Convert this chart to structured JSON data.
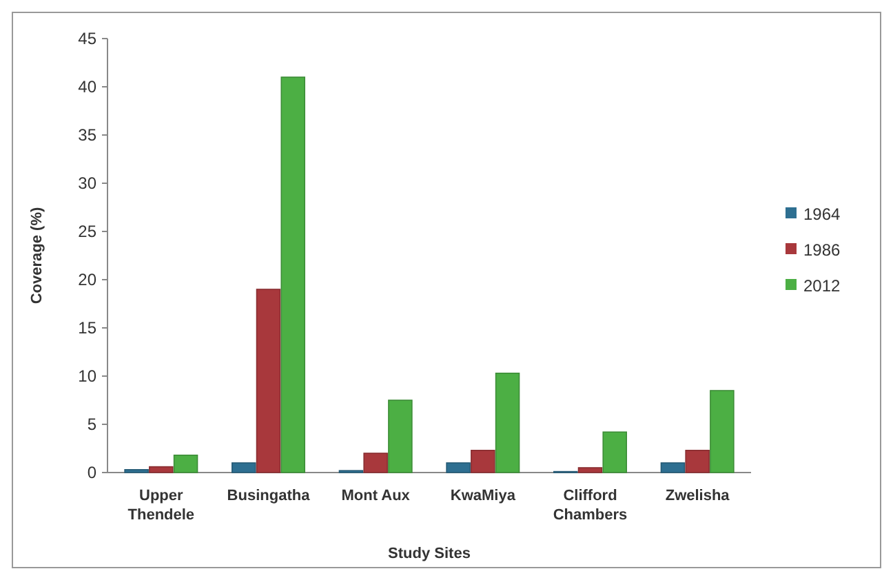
{
  "chart_data": {
    "type": "bar",
    "xlabel": "Study Sites",
    "ylabel": "Coverage (%)",
    "categories": [
      "Upper Thendele",
      "Busingatha",
      "Mont Aux",
      "KwaMiya",
      "Clifford Chambers",
      "Zwelisha"
    ],
    "series": [
      {
        "name": "1964",
        "color": "#2e6f91",
        "values": [
          0.3,
          1,
          0.2,
          1,
          0.1,
          1
        ]
      },
      {
        "name": "1986",
        "color": "#a8383c",
        "values": [
          0.6,
          19,
          2,
          2.3,
          0.5,
          2.3
        ]
      },
      {
        "name": "2012",
        "color": "#4caf44",
        "values": [
          1.8,
          41,
          7.5,
          10.3,
          4.2,
          8.5
        ]
      }
    ],
    "ylim": [
      0,
      45
    ],
    "yticks": [
      0,
      5,
      10,
      15,
      20,
      25,
      30,
      35,
      40,
      45
    ],
    "grid": false,
    "legend": "right"
  }
}
